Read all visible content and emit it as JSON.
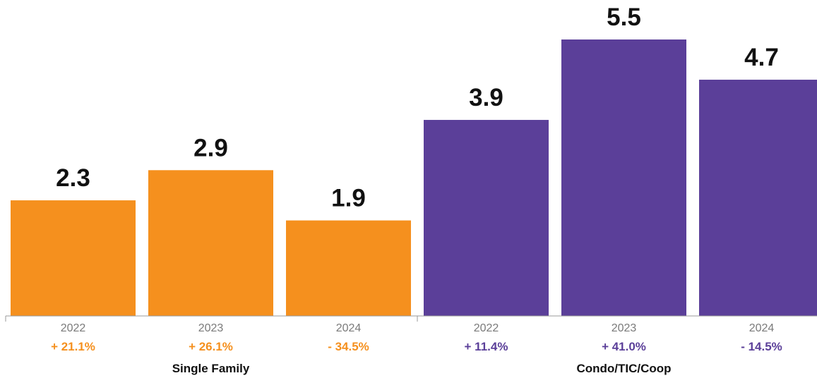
{
  "chart_data": {
    "type": "bar",
    "colors": {
      "single_family": "#F5901E",
      "condo": "#5B3F99",
      "axis": "#999999"
    },
    "groups": [
      {
        "name": "Single Family",
        "color_key": "single_family",
        "bars": [
          {
            "year": "2022",
            "value": 2.3,
            "value_label": "2.3",
            "change": "+ 21.1%"
          },
          {
            "year": "2023",
            "value": 2.9,
            "value_label": "2.9",
            "change": "+ 26.1%"
          },
          {
            "year": "2024",
            "value": 1.9,
            "value_label": "1.9",
            "change": "- 34.5%"
          }
        ]
      },
      {
        "name": "Condo/TIC/Coop",
        "color_key": "condo",
        "bars": [
          {
            "year": "2022",
            "value": 3.9,
            "value_label": "3.9",
            "change": "+ 11.4%"
          },
          {
            "year": "2023",
            "value": 5.5,
            "value_label": "5.5",
            "change": "+ 41.0%"
          },
          {
            "year": "2024",
            "value": 4.7,
            "value_label": "4.7",
            "change": "- 14.5%"
          }
        ]
      }
    ],
    "ylim": [
      0,
      5.5
    ],
    "grid": false,
    "legend": "none"
  }
}
